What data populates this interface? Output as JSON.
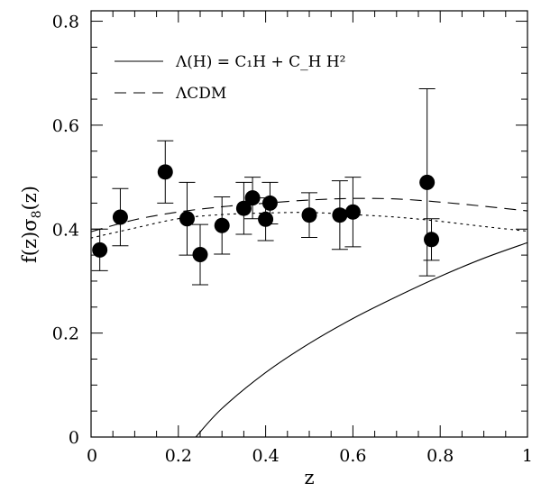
{
  "chart_data": {
    "type": "scatter",
    "xlabel": "z",
    "ylabel": "f(z)σ8(z)",
    "xlim": [
      0,
      1
    ],
    "ylim": [
      0,
      0.82
    ],
    "x_ticks": [
      0,
      0.2,
      0.4,
      0.6,
      0.8,
      1
    ],
    "x_tick_labels": [
      "0",
      "0.2",
      "0.4",
      "0.6",
      "0.8",
      "1"
    ],
    "y_ticks": [
      0,
      0.2,
      0.4,
      0.6,
      0.8
    ],
    "y_tick_labels": [
      "0",
      "0.2",
      "0.4",
      "0.6",
      "0.8"
    ],
    "grid": false,
    "legend_position": "top-left",
    "legend": [
      {
        "label": "Λ(H) = C₁H + C_H H²",
        "style": "solid"
      },
      {
        "label": "ΛCDM",
        "style": "dashed"
      }
    ],
    "points": {
      "x": [
        0.02,
        0.067,
        0.17,
        0.22,
        0.25,
        0.3,
        0.35,
        0.37,
        0.4,
        0.41,
        0.5,
        0.57,
        0.6,
        0.77,
        0.78
      ],
      "y": [
        0.36,
        0.423,
        0.51,
        0.42,
        0.351,
        0.407,
        0.44,
        0.46,
        0.419,
        0.45,
        0.427,
        0.427,
        0.433,
        0.49,
        0.38
      ],
      "yerr": [
        0.04,
        0.055,
        0.06,
        0.07,
        0.058,
        0.055,
        0.05,
        0.04,
        0.041,
        0.04,
        0.043,
        0.066,
        0.067,
        0.18,
        0.04
      ]
    },
    "series": [
      {
        "name": "Λ(H) = C₁H + C_H H²",
        "style": "solid",
        "x": [
          0.24,
          0.3,
          0.4,
          0.5,
          0.6,
          0.7,
          0.8,
          0.9,
          1.0
        ],
        "y": [
          0.0,
          0.055,
          0.124,
          0.18,
          0.228,
          0.27,
          0.309,
          0.344,
          0.374
        ]
      },
      {
        "name": "ΛCDM",
        "style": "dashed",
        "x": [
          0.0,
          0.1,
          0.2,
          0.3,
          0.4,
          0.5,
          0.6,
          0.7,
          0.8,
          0.9,
          1.0
        ],
        "y": [
          0.395,
          0.418,
          0.433,
          0.443,
          0.45,
          0.456,
          0.459,
          0.458,
          0.452,
          0.444,
          0.435
        ]
      },
      {
        "style": "dotted",
        "x": [
          0.0,
          0.1,
          0.2,
          0.3,
          0.4,
          0.5,
          0.6,
          0.7,
          0.8,
          0.9,
          1.0
        ],
        "y": [
          0.383,
          0.402,
          0.42,
          0.428,
          0.431,
          0.432,
          0.428,
          0.423,
          0.415,
          0.405,
          0.396
        ]
      }
    ]
  }
}
